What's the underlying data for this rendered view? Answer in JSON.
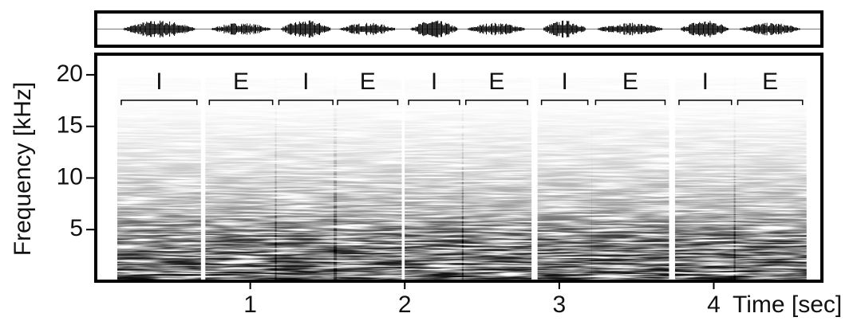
{
  "chart_data": {
    "type": "spectrogram",
    "ylabel": "Frequency [kHz]",
    "xlabel": "Time [sec]",
    "xlim": [
      0,
      4.7
    ],
    "xticks": [
      1,
      2,
      3,
      4
    ],
    "ylim": [
      0,
      22
    ],
    "yticks": [
      5,
      10,
      15,
      20
    ],
    "segments": [
      {
        "label": "I",
        "start": 0.16,
        "end": 0.66
      },
      {
        "label": "E",
        "start": 0.73,
        "end": 1.15
      },
      {
        "label": "I",
        "start": 1.18,
        "end": 1.54
      },
      {
        "label": "E",
        "start": 1.56,
        "end": 1.96
      },
      {
        "label": "I",
        "start": 2.02,
        "end": 2.36
      },
      {
        "label": "E",
        "start": 2.39,
        "end": 2.8
      },
      {
        "label": "I",
        "start": 2.88,
        "end": 3.19
      },
      {
        "label": "E",
        "start": 3.23,
        "end": 3.69
      },
      {
        "label": "I",
        "start": 3.77,
        "end": 4.12
      },
      {
        "label": "E",
        "start": 4.15,
        "end": 4.58
      }
    ]
  }
}
